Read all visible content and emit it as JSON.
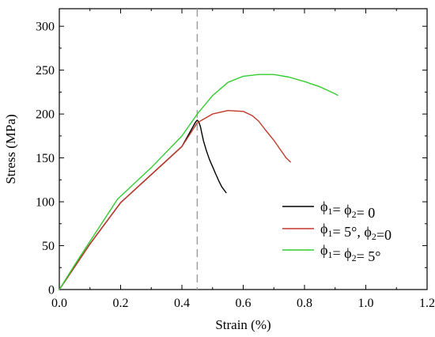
{
  "chart_data": {
    "type": "line",
    "xlabel": "Strain (%)",
    "ylabel": "Stress (MPa)",
    "xlim": [
      0.0,
      1.2
    ],
    "ylim": [
      0,
      320
    ],
    "xticks": [
      0.0,
      0.2,
      0.4,
      0.6,
      0.8,
      1.0,
      1.2
    ],
    "xtick_labels": [
      "0.0",
      "0.2",
      "0.4",
      "0.6",
      "0.8",
      "1.0",
      "1.2"
    ],
    "yticks": [
      0,
      50,
      100,
      150,
      200,
      250,
      300
    ],
    "ytick_labels": [
      "0",
      "50",
      "100",
      "150",
      "200",
      "250",
      "300"
    ],
    "grid": false,
    "legend_position": "center-right",
    "reference_line": {
      "x": 0.45,
      "style": "dashed",
      "color": "#9e9e9e"
    },
    "series": [
      {
        "name": "ϕ1 = ϕ2 = 0",
        "legend": {
          "base1": "ϕ",
          "sub1": "1",
          "mid": "= ϕ",
          "sub2": "2",
          "tail": "= 0"
        },
        "color": "#000000",
        "x": [
          0.0,
          0.05,
          0.1,
          0.2,
          0.3,
          0.4,
          0.445,
          0.45,
          0.455,
          0.46,
          0.47,
          0.48,
          0.49,
          0.5,
          0.51,
          0.52,
          0.53,
          0.545
        ],
        "y": [
          0,
          26,
          52,
          99,
          131,
          163,
          191,
          193,
          191,
          186,
          170,
          158,
          148,
          140,
          132,
          124,
          117,
          110
        ]
      },
      {
        "name": "ϕ1 = 5°, ϕ2 = 0",
        "legend": {
          "base1": "ϕ",
          "sub1": "1",
          "mid": "= 5°, ϕ",
          "sub2": "2",
          "tail": "=0"
        },
        "color": "#c0392b",
        "x": [
          0.0,
          0.05,
          0.1,
          0.2,
          0.3,
          0.4,
          0.45,
          0.5,
          0.55,
          0.6,
          0.63,
          0.65,
          0.67,
          0.7,
          0.72,
          0.74,
          0.755
        ],
        "y": [
          0,
          26,
          52,
          99,
          131,
          163,
          190,
          200,
          204,
          203,
          198,
          192,
          183,
          170,
          160,
          150,
          145
        ]
      },
      {
        "name": "ϕ1 = ϕ2 = 5°",
        "legend": {
          "base1": "ϕ",
          "sub1": "1",
          "mid": "= ϕ",
          "sub2": "2",
          "tail": "= 5°"
        },
        "color": "#33cc33",
        "x": [
          0.0,
          0.05,
          0.1,
          0.19,
          0.3,
          0.4,
          0.45,
          0.5,
          0.55,
          0.6,
          0.65,
          0.7,
          0.75,
          0.8,
          0.85,
          0.9,
          0.91
        ],
        "y": [
          0,
          28,
          55,
          103,
          139,
          175,
          200,
          221,
          236,
          243,
          245,
          245,
          242,
          237,
          231,
          223,
          221
        ]
      }
    ]
  }
}
